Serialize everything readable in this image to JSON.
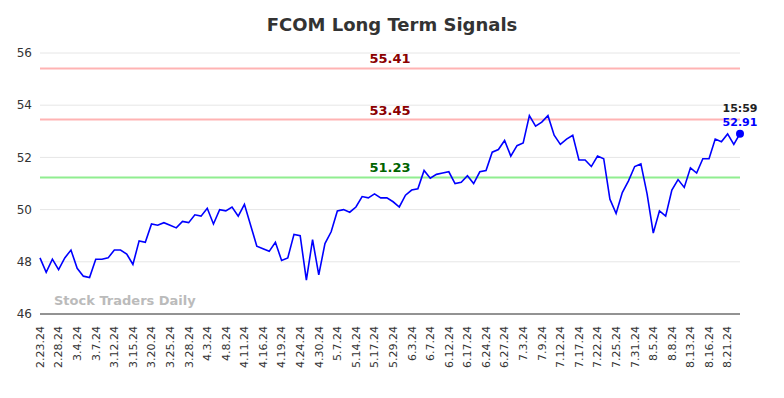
{
  "chart_data": {
    "type": "line",
    "title": "FCOM Long Term Signals",
    "watermark": "Stock Traders Daily",
    "last_point_label": "15:59",
    "categories": [
      "2.23.24",
      null,
      null,
      "2.28.24",
      null,
      null,
      "3.4.24",
      null,
      null,
      "3.7.24",
      null,
      null,
      "3.12.24",
      null,
      null,
      "3.15.24",
      null,
      null,
      "3.20.24",
      null,
      null,
      "3.25.24",
      null,
      null,
      "3.28.24",
      null,
      null,
      "4.3.24",
      null,
      null,
      "4.8.24",
      null,
      null,
      "4.11.24",
      null,
      null,
      "4.16.24",
      null,
      null,
      "4.19.24",
      null,
      null,
      "4.24.24",
      null,
      null,
      "4.30.24",
      null,
      null,
      "5.7.24",
      null,
      null,
      "5.14.24",
      null,
      null,
      "5.17.24",
      null,
      null,
      "5.29.24",
      null,
      null,
      "6.3.24",
      null,
      null,
      "6.7.24",
      null,
      null,
      "6.12.24",
      null,
      null,
      "6.17.24",
      null,
      null,
      "6.24.24",
      null,
      null,
      "6.27.24",
      null,
      null,
      "7.3.24",
      null,
      null,
      "7.9.24",
      null,
      null,
      "7.12.24",
      null,
      null,
      "7.17.24",
      null,
      null,
      "7.22.24",
      null,
      null,
      "7.25.24",
      null,
      null,
      "7.31.24",
      null,
      null,
      "8.5.24",
      null,
      null,
      "8.8.24",
      null,
      null,
      "8.13.24",
      null,
      null,
      "8.16.24",
      null,
      null,
      "8.21.24",
      null,
      null
    ],
    "values": [
      48.15,
      47.6,
      48.1,
      47.7,
      48.15,
      48.45,
      47.75,
      47.45,
      47.4,
      48.1,
      48.1,
      48.15,
      48.45,
      48.45,
      48.3,
      47.9,
      48.8,
      48.75,
      49.45,
      49.4,
      49.5,
      49.4,
      49.3,
      49.55,
      49.5,
      49.8,
      49.75,
      50.05,
      49.45,
      50.0,
      49.95,
      50.1,
      49.75,
      50.2,
      49.4,
      48.6,
      48.5,
      48.4,
      48.75,
      48.05,
      48.15,
      49.05,
      49.0,
      47.3,
      48.85,
      47.5,
      48.7,
      49.15,
      49.95,
      50.0,
      49.9,
      50.1,
      50.5,
      50.45,
      50.6,
      50.45,
      50.45,
      50.3,
      50.1,
      50.55,
      50.75,
      50.8,
      51.5,
      51.2,
      51.35,
      51.4,
      51.45,
      51.0,
      51.05,
      51.3,
      51.0,
      51.45,
      51.5,
      52.2,
      52.3,
      52.65,
      52.05,
      52.45,
      52.55,
      53.6,
      53.2,
      53.35,
      53.6,
      52.85,
      52.5,
      52.7,
      52.85,
      51.9,
      51.9,
      51.65,
      52.05,
      51.95,
      50.4,
      49.85,
      50.65,
      51.1,
      51.65,
      51.75,
      50.6,
      49.1,
      49.95,
      49.75,
      50.75,
      51.15,
      50.85,
      51.6,
      51.4,
      51.95,
      51.95,
      52.7,
      52.6,
      52.9,
      52.5,
      52.91
    ],
    "color": "#0000ff",
    "reference_lines": [
      {
        "value": 55.41,
        "color": "#ffb3b3",
        "label_color": "#8b0000"
      },
      {
        "value": 53.45,
        "color": "#ffb3b3",
        "label_color": "#8b0000"
      },
      {
        "value": 51.23,
        "color": "#90ee90",
        "label_color": "#006400"
      }
    ],
    "ylim": [
      46,
      56
    ],
    "yticks": [
      46,
      48,
      50,
      52,
      54,
      56
    ],
    "grid": true
  }
}
